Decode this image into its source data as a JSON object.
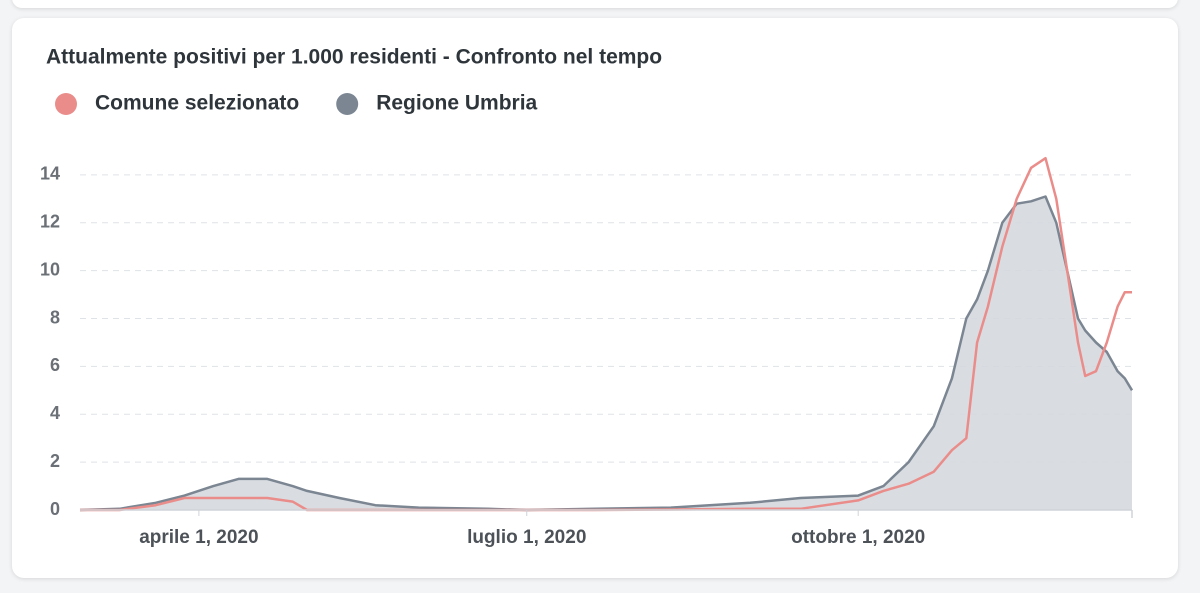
{
  "chart_data": {
    "type": "line",
    "title": "Attualmente positivi per 1.000 residenti - Confronto nel tempo",
    "x": [
      "2020-02-28",
      "2020-03-10",
      "2020-03-20",
      "2020-03-28",
      "2020-04-05",
      "2020-04-12",
      "2020-04-20",
      "2020-04-27",
      "2020-05-01",
      "2020-05-10",
      "2020-05-20",
      "2020-06-01",
      "2020-06-20",
      "2020-07-01",
      "2020-07-20",
      "2020-08-10",
      "2020-09-01",
      "2020-09-15",
      "2020-10-01",
      "2020-10-08",
      "2020-10-15",
      "2020-10-22",
      "2020-10-27",
      "2020-10-31",
      "2020-11-03",
      "2020-11-06",
      "2020-11-10",
      "2020-11-14",
      "2020-11-18",
      "2020-11-22",
      "2020-11-25",
      "2020-11-28",
      "2020-12-01",
      "2020-12-03",
      "2020-12-06",
      "2020-12-09",
      "2020-12-12",
      "2020-12-14",
      "2020-12-16"
    ],
    "series": [
      {
        "name": "Comune selezionato",
        "color": "#ea8d8a",
        "values": [
          0,
          0,
          0.2,
          0.5,
          0.5,
          0.5,
          0.5,
          0.35,
          0,
          0,
          0,
          0,
          0,
          0,
          0,
          0.02,
          0.05,
          0.05,
          0.4,
          0.8,
          1.1,
          1.6,
          2.5,
          3.0,
          7.0,
          8.5,
          11.0,
          13.0,
          14.3,
          14.7,
          13.0,
          10.0,
          7.0,
          5.6,
          5.8,
          7.0,
          8.5,
          9.1,
          9.1
        ]
      },
      {
        "name": "Regione Umbria",
        "color": "#7b8692",
        "fill": "#d5d9df",
        "values": [
          0,
          0.05,
          0.3,
          0.6,
          1.0,
          1.3,
          1.3,
          1.0,
          0.8,
          0.5,
          0.2,
          0.1,
          0.05,
          0,
          0.05,
          0.1,
          0.3,
          0.5,
          0.6,
          1.0,
          2.0,
          3.5,
          5.5,
          8.0,
          8.8,
          10.0,
          12.0,
          12.8,
          12.9,
          13.1,
          12.0,
          10.0,
          8.0,
          7.5,
          7.0,
          6.6,
          5.8,
          5.5,
          5.0
        ]
      }
    ],
    "xlim": [
      "2020-02-28",
      "2020-12-16"
    ],
    "xticks": [
      {
        "value": "2020-04-01",
        "label": "aprile 1, 2020"
      },
      {
        "value": "2020-07-01",
        "label": "luglio 1, 2020"
      },
      {
        "value": "2020-10-01",
        "label": "ottobre 1, 2020"
      }
    ],
    "ylim": [
      0,
      15
    ],
    "yticks": [
      0,
      2,
      4,
      6,
      8,
      10,
      12,
      14
    ],
    "grid": true,
    "legend": "top-left"
  }
}
